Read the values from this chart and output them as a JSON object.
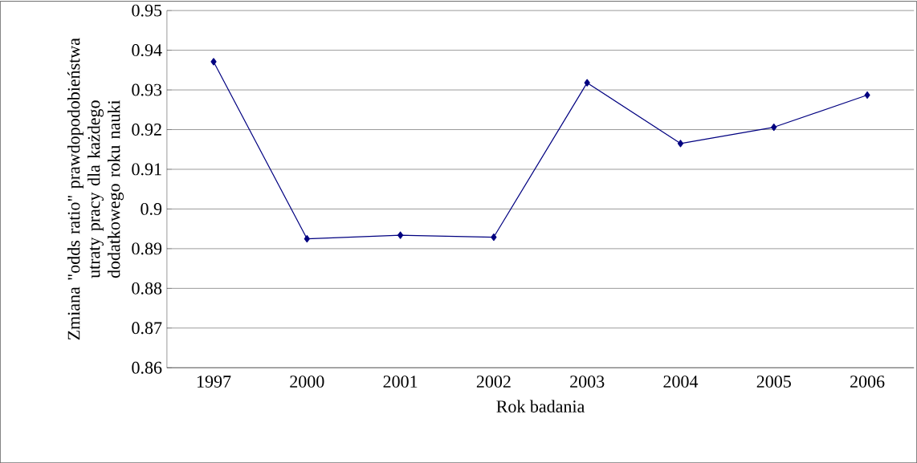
{
  "chart_data": {
    "type": "line",
    "xlabel": "Rok badania",
    "ylabel": "Zmiana \"odds ratio\" prawdopodobieństwa utraty pracy dla każdego dodatkowego roku nauki",
    "categories": [
      "1997",
      "2000",
      "2001",
      "2002",
      "2003",
      "2004",
      "2005",
      "2006"
    ],
    "series": [
      {
        "color": "#000080",
        "values": [
          0.9371,
          0.8925,
          0.8934,
          0.8929,
          0.9318,
          0.9165,
          0.9206,
          0.9287
        ]
      }
    ],
    "ylim": [
      0.86,
      0.95
    ],
    "yticks": [
      0.86,
      0.87,
      0.88,
      0.89,
      0.9,
      0.91,
      0.92,
      0.93,
      0.94,
      0.95
    ],
    "grid": "y",
    "marker": "diamond",
    "line_style": "solid"
  }
}
